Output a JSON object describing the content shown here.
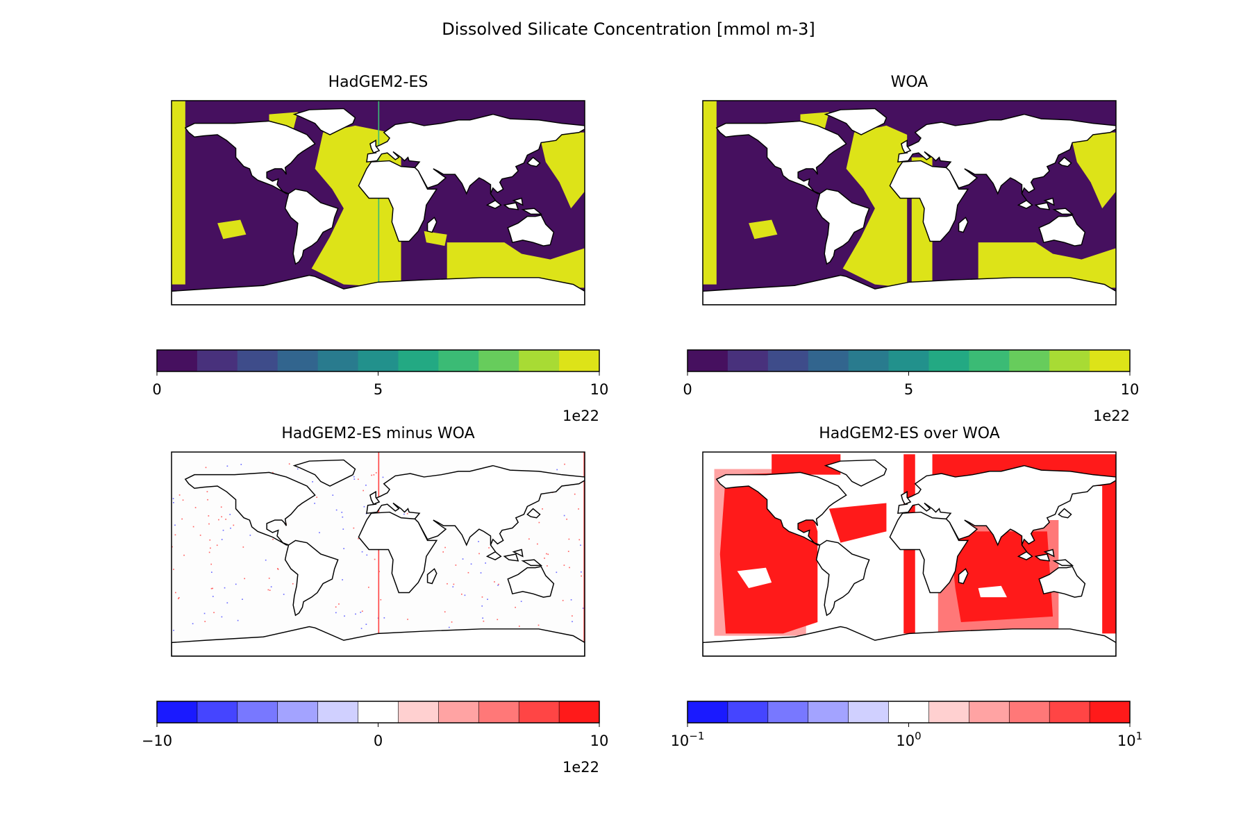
{
  "chart_data": {
    "type": "heatmap",
    "title": "Dissolved Silicate Concentration [mmol m-3]",
    "colors": {
      "continent": "#ffffff",
      "coastline": "#000000",
      "viridis": [
        "#46105f",
        "#48317c",
        "#3e4c8a",
        "#32658e",
        "#297b8e",
        "#22918c",
        "#23a983",
        "#3bbb75",
        "#67cc5c",
        "#a8db34",
        "#dde318"
      ],
      "bwr": [
        "#1a1aff",
        "#4545ff",
        "#7878ff",
        "#a3a3ff",
        "#d0d0ff",
        "#ffffff",
        "#ffd0d0",
        "#ffa3a3",
        "#ff7878",
        "#ff4545",
        "#ff1a1a"
      ]
    },
    "panels": [
      {
        "title": "HadGEM2-ES",
        "projection": "plate carree",
        "lon_range": [
          -180,
          180
        ],
        "lat_range": [
          -90,
          90
        ],
        "colorbar": {
          "scale": "linear",
          "range": [
            0,
            10
          ],
          "ticks": [
            "0",
            "5",
            "10"
          ],
          "offset_label": "1e22",
          "colormap": "viridis",
          "bins": 11
        }
      },
      {
        "title": "WOA",
        "projection": "plate carree",
        "lon_range": [
          -180,
          180
        ],
        "lat_range": [
          -90,
          90
        ],
        "colorbar": {
          "scale": "linear",
          "range": [
            0,
            10
          ],
          "ticks": [
            "0",
            "5",
            "10"
          ],
          "offset_label": "1e22",
          "colormap": "viridis",
          "bins": 11
        }
      },
      {
        "title": "HadGEM2-ES minus WOA",
        "projection": "plate carree",
        "lon_range": [
          -180,
          180
        ],
        "lat_range": [
          -90,
          90
        ],
        "colorbar": {
          "scale": "linear",
          "range": [
            -10,
            10
          ],
          "ticks": [
            "−10",
            "0",
            "10"
          ],
          "offset_label": "1e22",
          "colormap": "bwr",
          "bins": 11
        }
      },
      {
        "title": "HadGEM2-ES over WOA",
        "projection": "plate carree",
        "lon_range": [
          -180,
          180
        ],
        "lat_range": [
          -90,
          90
        ],
        "colorbar": {
          "scale": "log",
          "range": [
            0.1,
            10
          ],
          "ticks": [
            {
              "base": "10",
              "exp": "−1"
            },
            {
              "base": "10",
              "exp": "0"
            },
            {
              "base": "10",
              "exp": "1"
            }
          ],
          "offset_label": "",
          "colormap": "bwr",
          "bins": 11
        }
      }
    ]
  }
}
